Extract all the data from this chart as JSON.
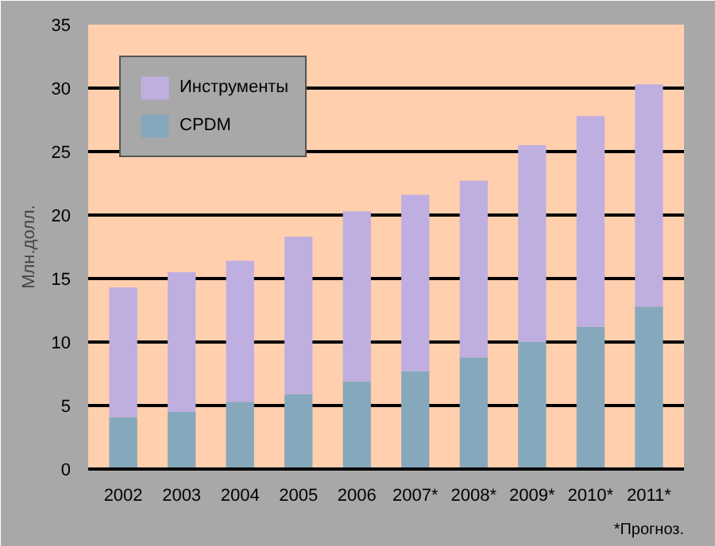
{
  "chart_data": {
    "type": "bar",
    "stacked": true,
    "ylabel": "Млн.долл.",
    "categories": [
      "2002",
      "2003",
      "2004",
      "2005",
      "2006",
      "2007*",
      "2008*",
      "2009*",
      "2010*",
      "2011*"
    ],
    "series": [
      {
        "name": "CPDM",
        "color": "#86a8bc",
        "values": [
          4.1,
          4.5,
          5.3,
          5.9,
          6.9,
          7.7,
          8.8,
          10.0,
          11.2,
          12.8
        ]
      },
      {
        "name": "Инструменты",
        "color": "#bfaee0",
        "values": [
          10.2,
          11.0,
          11.1,
          12.4,
          13.4,
          13.9,
          13.9,
          15.5,
          16.6,
          17.5
        ]
      }
    ],
    "ylim": [
      0,
      35
    ],
    "yticks": [
      0,
      5,
      10,
      15,
      20,
      25,
      30,
      35
    ],
    "grid": "y",
    "legend": "top left",
    "annotations": [
      "*Прогноз."
    ]
  }
}
